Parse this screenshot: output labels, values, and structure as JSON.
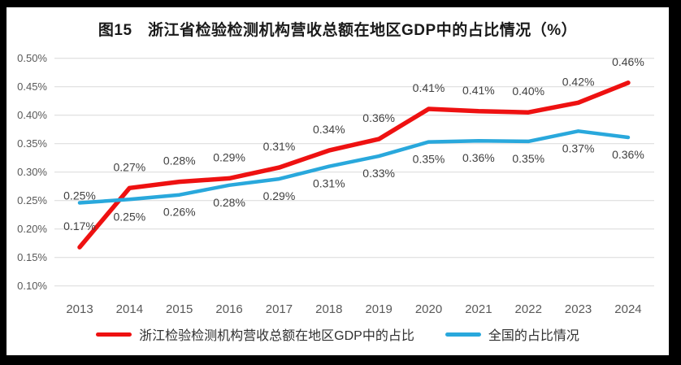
{
  "figure": {
    "frame_color": "#000000",
    "background_color": "#ffffff"
  },
  "chart_data": {
    "type": "line",
    "title": "图15　浙江省检验检测机构营收总额在地区GDP中的占比情况（%）",
    "xlabel": "",
    "ylabel": "",
    "grid": true,
    "legend_position": "bottom",
    "categories": [
      "2013",
      "2014",
      "2015",
      "2016",
      "2017",
      "2018",
      "2019",
      "2020",
      "2021",
      "2022",
      "2023",
      "2024"
    ],
    "series": [
      {
        "name": "浙江检验检测机构营收总额在地区GDP中的占比",
        "color": "#ee1111",
        "stroke_width": 5.5,
        "label_position": "above",
        "label_overrides": {},
        "values": [
          0.168,
          0.272,
          0.283,
          0.289,
          0.308,
          0.338,
          0.358,
          0.411,
          0.407,
          0.405,
          0.422,
          0.457
        ],
        "labels": [
          "0.17%",
          "0.27%",
          "0.28%",
          "0.29%",
          "0.31%",
          "0.34%",
          "0.36%",
          "0.41%",
          "0.41%",
          "0.40%",
          "0.42%",
          "0.46%"
        ]
      },
      {
        "name": "全国的占比情况",
        "color": "#29a8dc",
        "stroke_width": 4.5,
        "label_position": "below",
        "label_overrides": {
          "0": "above-near"
        },
        "values": [
          0.246,
          0.252,
          0.26,
          0.277,
          0.288,
          0.31,
          0.328,
          0.353,
          0.355,
          0.354,
          0.372,
          0.361
        ],
        "labels": [
          "0.25%",
          "0.25%",
          "0.26%",
          "0.28%",
          "0.29%",
          "0.31%",
          "0.33%",
          "0.35%",
          "0.36%",
          "0.35%",
          "0.37%",
          "0.36%"
        ]
      }
    ],
    "y_axis": {
      "min": 0.1,
      "max": 0.5,
      "step": 0.05,
      "tick_labels": [
        "0.10%",
        "0.15%",
        "0.20%",
        "0.25%",
        "0.30%",
        "0.35%",
        "0.40%",
        "0.45%",
        "0.50%"
      ]
    },
    "style": {
      "grid_color": "#d9d9d9",
      "axis_text_color": "#595959",
      "data_label_color": "#404040",
      "legend_text_color": "#303030",
      "title_color": "#1a1a1a"
    }
  }
}
